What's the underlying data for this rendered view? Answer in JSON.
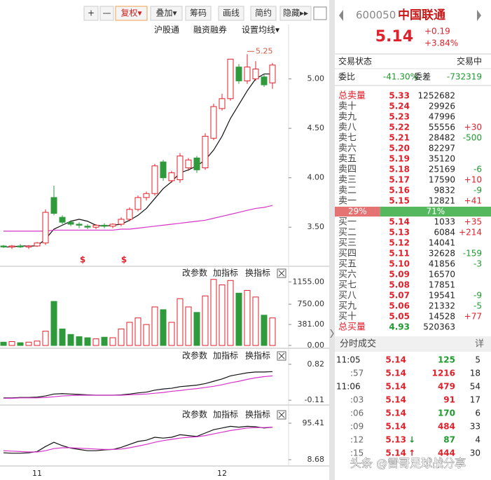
{
  "toolbar": {
    "buttons": [
      "+",
      "—",
      "复权▾",
      "叠加▾",
      "筹码",
      "画线",
      "简约",
      "隐藏▸▸"
    ],
    "links": [
      "沪股通",
      "融资融券",
      "设置均线▾"
    ],
    "panel_tools": [
      "改参数",
      "加指标",
      "换指标"
    ]
  },
  "chart_data": [
    {
      "type": "candlestick",
      "categories": [
        null,
        null,
        null,
        null,
        "11",
        null,
        null,
        null,
        null,
        null,
        null,
        null,
        null,
        null,
        null,
        null,
        null,
        null,
        null,
        null,
        null,
        null,
        null,
        null,
        null,
        null,
        "12",
        null,
        null,
        null,
        null,
        null,
        null
      ],
      "open": [
        3.31,
        3.3,
        3.31,
        3.3,
        3.31,
        3.34,
        3.8,
        3.6,
        3.55,
        3.53,
        3.51,
        3.5,
        3.52,
        3.51,
        3.53,
        3.58,
        3.68,
        3.8,
        3.84,
        4.16,
        3.97,
        3.98,
        4.1,
        4.2,
        4.1,
        4.4,
        4.7,
        4.8,
        5.12,
        4.98,
        5.0,
        5.02,
        4.96
      ],
      "high": [
        3.32,
        3.32,
        3.33,
        3.32,
        3.35,
        3.68,
        3.92,
        3.62,
        3.57,
        3.55,
        3.53,
        3.53,
        3.54,
        3.54,
        3.6,
        3.7,
        3.82,
        3.86,
        4.14,
        4.18,
        4.07,
        4.25,
        4.2,
        4.22,
        4.45,
        4.75,
        4.85,
        5.2,
        5.15,
        5.25,
        5.18,
        5.05,
        5.16
      ],
      "low": [
        3.29,
        3.28,
        3.29,
        3.28,
        3.3,
        3.32,
        3.62,
        3.53,
        3.51,
        3.49,
        3.48,
        3.48,
        3.49,
        3.49,
        3.51,
        3.56,
        3.66,
        3.77,
        3.82,
        3.97,
        3.95,
        3.95,
        4.07,
        4.05,
        4.08,
        4.38,
        4.68,
        4.78,
        4.95,
        4.95,
        4.98,
        4.92,
        4.9
      ],
      "close": [
        3.3,
        3.31,
        3.3,
        3.31,
        3.34,
        3.65,
        3.64,
        3.55,
        3.53,
        3.52,
        3.5,
        3.52,
        3.51,
        3.53,
        3.58,
        3.68,
        3.8,
        3.84,
        4.12,
        4.0,
        4.05,
        4.22,
        4.18,
        4.08,
        4.42,
        4.72,
        4.8,
        5.2,
        4.98,
        5.12,
        5.1,
        4.94,
        5.14
      ],
      "up_color": "#e0212b",
      "down_color": "#2f9a3c",
      "series": [
        {
          "color": "#111111",
          "values": [
            3.3,
            3.3,
            3.31,
            3.31,
            3.31,
            3.38,
            3.48,
            3.52,
            3.56,
            3.58,
            3.56,
            3.52,
            3.51,
            3.52,
            3.53,
            3.57,
            3.62,
            3.69,
            3.79,
            3.89,
            3.96,
            4.05,
            4.08,
            4.12,
            4.18,
            4.28,
            4.42,
            4.6,
            4.74,
            4.88,
            5.0,
            5.05,
            5.05
          ]
        },
        {
          "color": "#d633c8",
          "values": [
            3.46,
            3.46,
            3.46,
            3.46,
            3.46,
            3.46,
            3.47,
            3.47,
            3.47,
            3.47,
            3.47,
            3.47,
            3.47,
            3.47,
            3.48,
            3.48,
            3.49,
            3.5,
            3.51,
            3.52,
            3.53,
            3.54,
            3.55,
            3.56,
            3.57,
            3.59,
            3.61,
            3.63,
            3.65,
            3.67,
            3.69,
            3.7,
            3.72
          ]
        }
      ],
      "annotations": [
        "5.25"
      ],
      "signal_marks": [
        "$",
        "$"
      ],
      "ylim": [
        3.14,
        5.55
      ],
      "yticks": [
        {
          "value": 5,
          "label": "5.00"
        },
        {
          "value": 4.5,
          "label": "4.50"
        },
        {
          "value": 4,
          "label": "4.00"
        },
        {
          "value": 3.5,
          "label": "3.50"
        }
      ]
    },
    {
      "type": "bar",
      "values": [
        60,
        70,
        50,
        60,
        80,
        260,
        800,
        300,
        200,
        160,
        140,
        120,
        150,
        140,
        300,
        420,
        500,
        380,
        700,
        650,
        420,
        850,
        700,
        600,
        900,
        1200,
        1100,
        1180,
        950,
        1000,
        880,
        550,
        500
      ],
      "ylim": [
        0,
        1400
      ],
      "yticks": [
        {
          "value": 1155,
          "label": "1155.00"
        },
        {
          "value": 750,
          "label": "750.00"
        },
        {
          "value": 381,
          "label": "381.00"
        },
        {
          "value": 0,
          "label": "0.00"
        }
      ]
    },
    {
      "type": "line",
      "series": [
        {
          "color": "#111111",
          "values": [
            -0.05,
            -0.05,
            -0.04,
            -0.04,
            -0.03,
            0.0,
            0.05,
            0.06,
            0.05,
            0.04,
            0.03,
            0.02,
            0.02,
            0.02,
            0.03,
            0.05,
            0.08,
            0.1,
            0.15,
            0.18,
            0.2,
            0.24,
            0.26,
            0.28,
            0.32,
            0.38,
            0.44,
            0.52,
            0.56,
            0.6,
            0.62,
            0.62,
            0.63
          ]
        },
        {
          "color": "#d633c8",
          "values": [
            -0.06,
            -0.06,
            -0.05,
            -0.05,
            -0.05,
            -0.04,
            -0.02,
            0,
            0.01,
            0.02,
            0.02,
            0.02,
            0.02,
            0.02,
            0.02,
            0.03,
            0.04,
            0.05,
            0.07,
            0.09,
            0.12,
            0.14,
            0.17,
            0.19,
            0.22,
            0.25,
            0.29,
            0.34,
            0.38,
            0.43,
            0.47,
            0.5,
            0.52
          ]
        }
      ],
      "ylim": [
        -0.18,
        1.18
      ],
      "yticks": [
        0.82,
        -0.11
      ]
    },
    {
      "type": "line",
      "series": [
        {
          "color": "#111111",
          "values": [
            25,
            24,
            24,
            25,
            28,
            40,
            50,
            42,
            36,
            33,
            30,
            30,
            32,
            33,
            38,
            45,
            52,
            55,
            62,
            60,
            62,
            68,
            66,
            64,
            72,
            80,
            84,
            88,
            86,
            88,
            87,
            84,
            86
          ]
        },
        {
          "color": "#d633c8",
          "values": [
            30,
            29,
            28,
            27,
            27,
            30,
            35,
            37,
            37,
            36,
            35,
            34,
            33,
            33,
            34,
            37,
            41,
            45,
            50,
            54,
            57,
            60,
            62,
            63,
            66,
            70,
            74,
            78,
            81,
            84,
            85,
            85,
            86
          ]
        }
      ],
      "ylim": [
        2,
        132
      ],
      "yticks": [
        95.41,
        8.68
      ]
    }
  ],
  "quote": {
    "code": "600050",
    "name": "中国联通",
    "price": "5.14",
    "change": "+0.19",
    "pct": "+3.84%",
    "status_label": "交易状态",
    "status": "交易中",
    "ratio_label": "委比",
    "ratio": "-41.30%",
    "diff_label": "委差",
    "diff": "-732319"
  },
  "sell": [
    [
      "总卖量",
      "5.33",
      "1252682",
      ""
    ],
    [
      "卖十",
      "5.24",
      "29926",
      ""
    ],
    [
      "卖九",
      "5.23",
      "47996",
      ""
    ],
    [
      "卖八",
      "5.22",
      "55556",
      "+30"
    ],
    [
      "卖七",
      "5.21",
      "28482",
      "-500"
    ],
    [
      "卖六",
      "5.20",
      "82297",
      ""
    ],
    [
      "卖五",
      "5.19",
      "35120",
      ""
    ],
    [
      "卖四",
      "5.18",
      "25169",
      "-6"
    ],
    [
      "卖三",
      "5.17",
      "17590",
      "+10"
    ],
    [
      "卖二",
      "5.16",
      "9832",
      "-9"
    ],
    [
      "卖一",
      "5.15",
      "12821",
      "+41"
    ]
  ],
  "power": [
    {
      "label": "29%",
      "value": 29
    },
    {
      "label": "71%",
      "value": 71
    }
  ],
  "buy": [
    [
      "买一",
      "5.14",
      "1033",
      "+35"
    ],
    [
      "买二",
      "5.13",
      "6084",
      "+214"
    ],
    [
      "买三",
      "5.12",
      "14041",
      ""
    ],
    [
      "买四",
      "5.11",
      "32628",
      "-159"
    ],
    [
      "买五",
      "5.10",
      "41856",
      "-3"
    ],
    [
      "买六",
      "5.09",
      "16570",
      ""
    ],
    [
      "买七",
      "5.08",
      "17851",
      ""
    ],
    [
      "买八",
      "5.07",
      "19541",
      "-9"
    ],
    [
      "买九",
      "5.06",
      "21332",
      "-5"
    ],
    [
      "买十",
      "5.05",
      "14528",
      "+77"
    ],
    [
      "总买量",
      "4.93",
      "520363",
      ""
    ]
  ],
  "trades": {
    "title": "分时成交",
    "detail": "详",
    "rows": [
      {
        "time": "11:05",
        "price": "5.14",
        "arrow": "",
        "volume": "125",
        "count": "5",
        "side": "sell"
      },
      {
        "time": ":57",
        "price": "5.14",
        "arrow": "",
        "volume": "1216",
        "count": "18",
        "side": "buy"
      },
      {
        "time": "11:06",
        "price": "5.14",
        "arrow": "",
        "volume": "479",
        "count": "54",
        "side": "buy"
      },
      {
        "time": ":03",
        "price": "5.14",
        "arrow": "",
        "volume": "91",
        "count": "17",
        "side": "buy"
      },
      {
        "time": ":06",
        "price": "5.14",
        "arrow": "",
        "volume": "170",
        "count": "6",
        "side": "sell"
      },
      {
        "time": ":09",
        "price": "5.14",
        "arrow": "",
        "volume": "484",
        "count": "33",
        "side": "buy"
      },
      {
        "time": ":12",
        "price": "5.13",
        "arrow": "↓",
        "volume": "87",
        "count": "4",
        "side": "sell"
      },
      {
        "time": ":15",
        "price": "5.14",
        "arrow": "↑",
        "volume": "444",
        "count": "30",
        "side": "buy"
      }
    ]
  },
  "watermark": "头条 @雷哥足球战分享"
}
